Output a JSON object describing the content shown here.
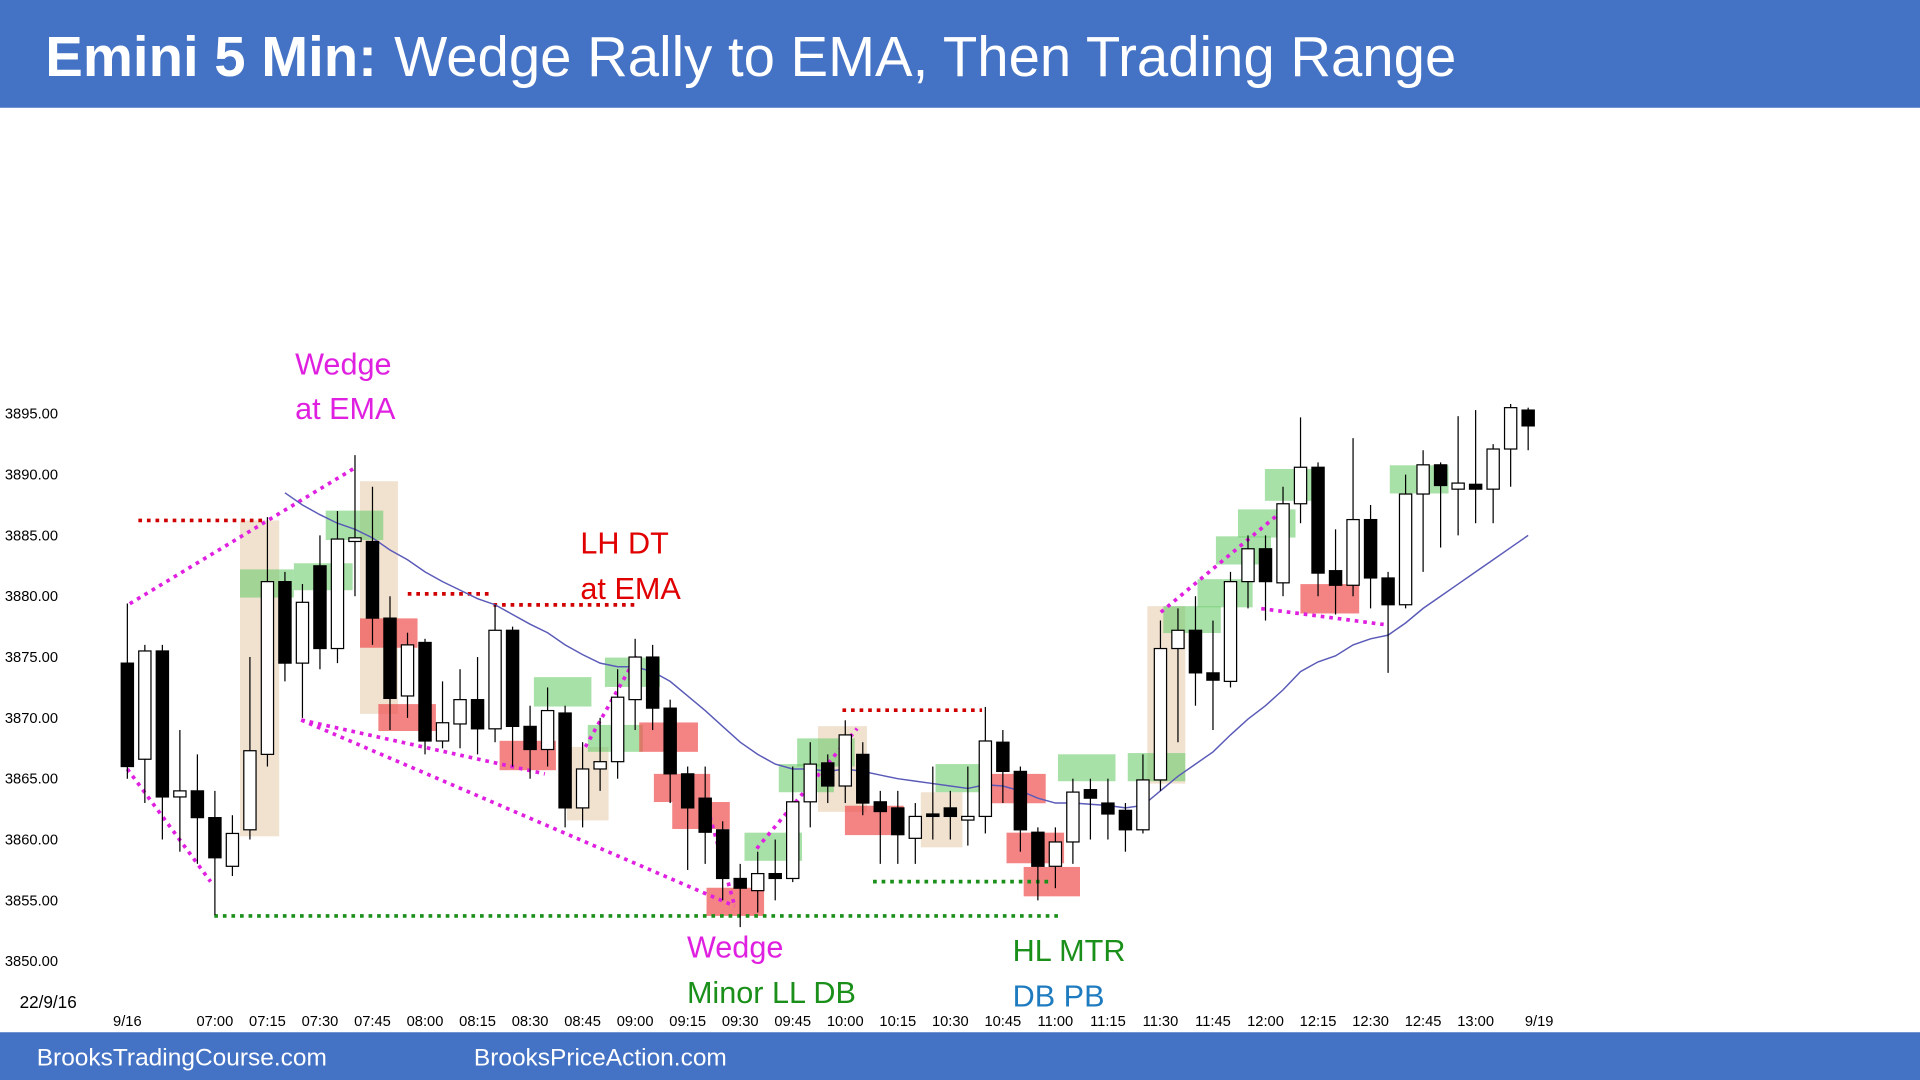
{
  "chart_data": {
    "type": "candlestick",
    "title_bold": "Emini 5 Min:",
    "title_rest": "Wedge Rally to EMA, Then Trading Range",
    "date_label": "22/9/16",
    "next_session_label": "9/19",
    "footer_left": "BrooksTradingCourse.com",
    "footer_right": "BrooksPriceAction.com",
    "annotations": [
      "Wedge",
      "at EMA",
      "LH DT",
      "at EMA",
      "Wedge",
      "Minor LL DB",
      "HL MTR",
      "DB PB"
    ],
    "up_color": "#ffffff",
    "down_color": "#000000",
    "ema_color": "#5a5ab8",
    "ylim": [
      3845,
      3920
    ],
    "yticks": [
      {
        "value": 3850,
        "label": "3850.00"
      },
      {
        "value": 3855,
        "label": "3855.00"
      },
      {
        "value": 3860,
        "label": "3860.00"
      },
      {
        "value": 3865,
        "label": "3865.00"
      },
      {
        "value": 3870,
        "label": "3870.00"
      },
      {
        "value": 3875,
        "label": "3875.00"
      },
      {
        "value": 3880,
        "label": "3880.00"
      },
      {
        "value": 3885,
        "label": "3885.00"
      },
      {
        "value": 3890,
        "label": "3890.00"
      },
      {
        "value": 3895,
        "label": "3895.00"
      }
    ],
    "grid": false,
    "categories": [
      "9/16",
      null,
      null,
      null,
      null,
      "07:00",
      null,
      null,
      "07:15",
      null,
      null,
      "07:30",
      null,
      null,
      "07:45",
      null,
      null,
      "08:00",
      null,
      null,
      "08:15",
      null,
      null,
      "08:30",
      null,
      null,
      "08:45",
      null,
      null,
      "09:00",
      null,
      null,
      "09:15",
      null,
      null,
      "09:30",
      null,
      null,
      "09:45",
      null,
      null,
      "10:00",
      null,
      null,
      "10:15",
      null,
      null,
      "10:30",
      null,
      null,
      "10:45",
      null,
      null,
      "11:00",
      null,
      null,
      "11:15",
      null,
      null,
      "11:30",
      null,
      null,
      "11:45",
      null,
      null,
      "12:00",
      null,
      null,
      "12:15",
      null,
      null,
      "12:30",
      null,
      null,
      "12:45",
      null,
      null,
      "13:00",
      null,
      null,
      null
    ],
    "open": [
      3874.5,
      3866.6,
      3875.5,
      3863.5,
      3864,
      3861.8,
      3857.8,
      3860.8,
      3867,
      3881.2,
      3874.5,
      3882.5,
      3875.7,
      3884.5,
      3884.5,
      3878.2,
      3871.8,
      3876.2,
      3868.1,
      3869.5,
      3871.5,
      3869.1,
      3877.2,
      3869.3,
      3867.4,
      3870.4,
      3862.6,
      3865.8,
      3866.4,
      3871.5,
      3875,
      3870.8,
      3865.4,
      3863.4,
      3860.8,
      3856.8,
      3855.8,
      3857.2,
      3856.8,
      3863.1,
      3866.3,
      3864.4,
      3867,
      3863.1,
      3862.6,
      3860.1,
      3862.1,
      3862.6,
      3861.6,
      3861.9,
      3868,
      3865.6,
      3860.6,
      3857.8,
      3859.8,
      3864.1,
      3863,
      3862.4,
      3860.8,
      3864.9,
      3875.7,
      3877.2,
      3873.7,
      3873,
      3881.2,
      3883.9,
      3881.1,
      3887.6,
      3890.6,
      3882.1,
      3880.9,
      3886.3,
      3881.5,
      3879.3,
      3888.4,
      3890.8,
      3888.8,
      3889.2,
      3888.8,
      3892.1,
      3895.3
    ],
    "high": [
      3879.4,
      3876,
      3876,
      3869,
      3867,
      3864,
      3862,
      3875,
      3886.5,
      3882,
      3881,
      3885,
      3887,
      3891.6,
      3889,
      3880,
      3877,
      3876.5,
      3873,
      3874,
      3875,
      3879.3,
      3877.5,
      3871,
      3872.5,
      3871,
      3868,
      3870,
      3874,
      3876.5,
      3876,
      3871.5,
      3866,
      3866,
      3861.5,
      3858,
      3859,
      3860,
      3866,
      3868,
      3867,
      3869.8,
      3868,
      3864,
      3864,
      3863,
      3866,
      3864,
      3866,
      3870.9,
      3869,
      3866,
      3861,
      3861,
      3865,
      3865,
      3865,
      3863,
      3867,
      3878,
      3879,
      3880,
      3878,
      3882,
      3885,
      3885,
      3889,
      3894.7,
      3891,
      3885.5,
      3893,
      3887.5,
      3882,
      3890,
      3892,
      3891,
      3894.8,
      3895.3,
      3892.5,
      3895.8,
      3895.5
    ],
    "low": [
      3865,
      3863,
      3860,
      3859,
      3858,
      3853.8,
      3857,
      3860,
      3866,
      3873,
      3870,
      3874,
      3874.5,
      3880,
      3876,
      3869,
      3870,
      3867,
      3867.5,
      3867.5,
      3867,
      3868,
      3866,
      3865,
      3866,
      3861,
      3861,
      3864,
      3865,
      3869,
      3869,
      3863,
      3857.5,
      3858,
      3855,
      3852.8,
      3854,
      3855,
      3856.5,
      3861,
      3863,
      3863,
      3862,
      3858,
      3858,
      3858,
      3860,
      3860,
      3859.5,
      3860.5,
      3863,
      3859,
      3855,
      3856,
      3858,
      3860,
      3860,
      3859,
      3860.5,
      3864,
      3868,
      3871,
      3869,
      3872.5,
      3879,
      3878,
      3880,
      3886,
      3880,
      3878.5,
      3880,
      3879,
      3873.7,
      3879,
      3882,
      3884,
      3885,
      3886,
      3886,
      3889,
      3892
    ],
    "close": [
      3866,
      3875.5,
      3863.5,
      3864,
      3861.8,
      3858.5,
      3860.5,
      3867.3,
      3881.2,
      3874.5,
      3879.5,
      3875.7,
      3884.7,
      3884.8,
      3878.2,
      3871.6,
      3876,
      3868.1,
      3869.6,
      3871.5,
      3869.1,
      3877.2,
      3869.3,
      3867.4,
      3870.6,
      3862.6,
      3865.8,
      3866.4,
      3871.7,
      3875,
      3870.8,
      3865.4,
      3862.6,
      3860.6,
      3856.8,
      3856,
      3857.2,
      3856.8,
      3863.1,
      3866.2,
      3864.4,
      3868.6,
      3863,
      3862.3,
      3860.4,
      3861.9,
      3861.9,
      3861.9,
      3861.9,
      3868.1,
      3865.6,
      3860.8,
      3857.8,
      3859.8,
      3863.9,
      3863.4,
      3862.1,
      3860.8,
      3864.9,
      3875.7,
      3877.2,
      3873.7,
      3873.1,
      3881.2,
      3883.9,
      3881.2,
      3887.6,
      3890.6,
      3881.9,
      3880.9,
      3886.3,
      3881.5,
      3879.3,
      3888.4,
      3890.8,
      3889.1,
      3889.3,
      3888.8,
      3892.1,
      3895.5,
      3894
    ],
    "ema": [
      null,
      null,
      null,
      null,
      null,
      null,
      null,
      null,
      null,
      3888.5,
      3887.5,
      3886.7,
      3886,
      3885.5,
      3884.8,
      3883.8,
      3883,
      3882,
      3881.2,
      3880.5,
      3879.8,
      3879.3,
      3878.5,
      3877.7,
      3877,
      3876,
      3875.2,
      3874.5,
      3874.2,
      3874.2,
      3873.8,
      3873,
      3871.8,
      3870.6,
      3869.3,
      3868,
      3867,
      3866.2,
      3865.8,
      3865.8,
      3865.6,
      3865.8,
      3865.6,
      3865.3,
      3865,
      3864.8,
      3864.6,
      3864.4,
      3864.2,
      3864.5,
      3864.4,
      3864,
      3863.4,
      3863,
      3863,
      3862.9,
      3862.8,
      3862.6,
      3862.8,
      3864,
      3865.2,
      3866.2,
      3867.2,
      3868.6,
      3869.9,
      3871,
      3872.3,
      3873.8,
      3874.6,
      3875.1,
      3876,
      3876.5,
      3876.8,
      3877.8,
      3879,
      3880,
      3881,
      3882,
      3883,
      3884,
      3885
    ]
  }
}
